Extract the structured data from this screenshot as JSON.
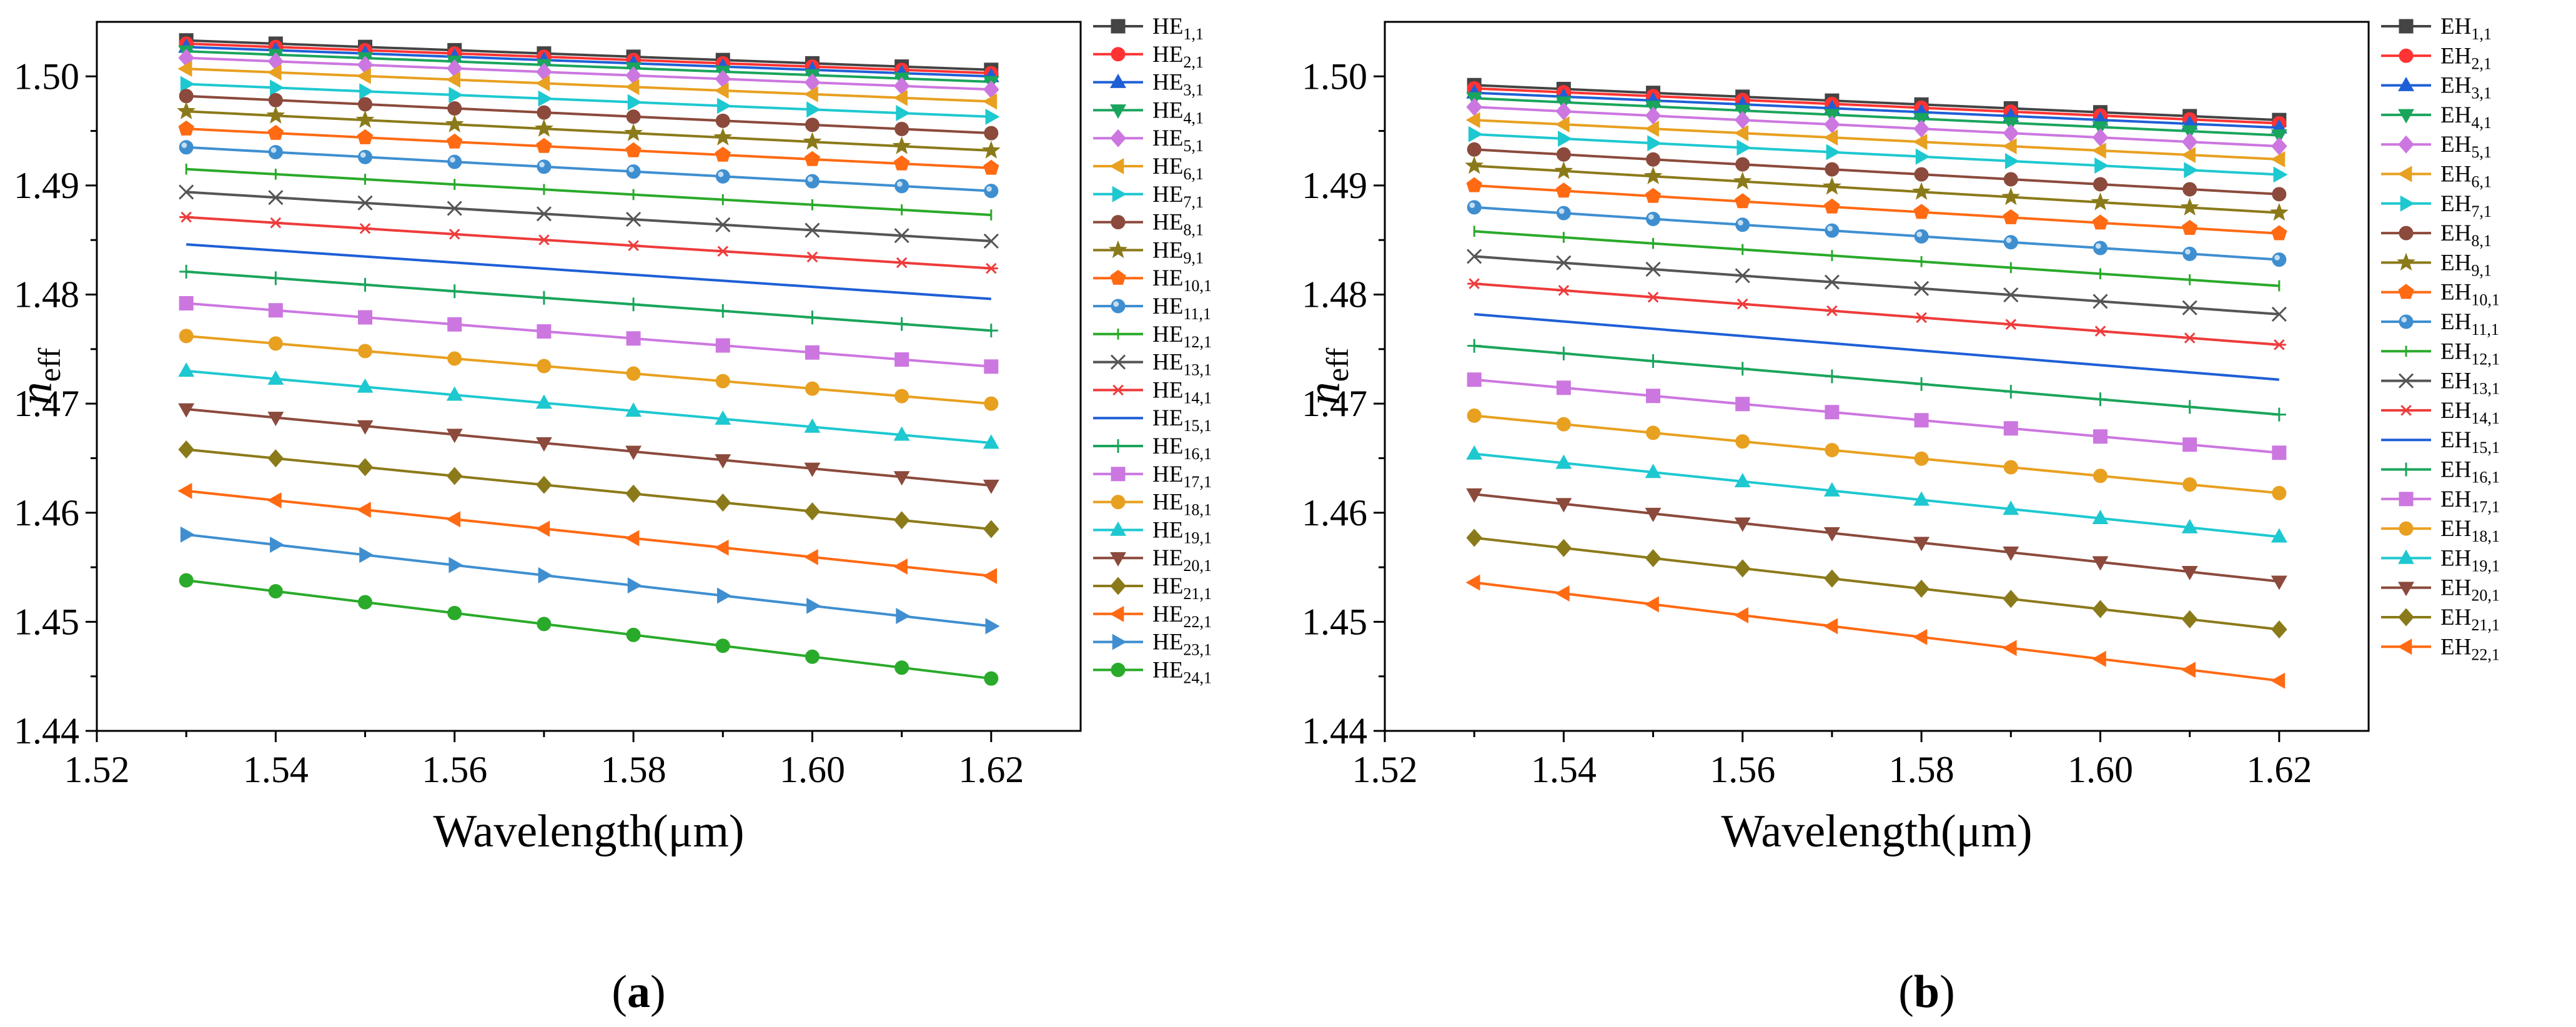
{
  "chart_data": [
    {
      "type": "line",
      "panel": "(a)",
      "panel_letter": "a",
      "xlabel": "Wavelength(μm)",
      "ylabel_main": "n",
      "ylabel_sub": "eff",
      "xlim": [
        1.52,
        1.63
      ],
      "ylim": [
        1.44,
        1.505
      ],
      "xticks": [
        "1.52",
        "1.54",
        "1.56",
        "1.58",
        "1.60",
        "1.62"
      ],
      "yticks": [
        "1.44",
        "1.45",
        "1.46",
        "1.47",
        "1.48",
        "1.49",
        "1.50"
      ],
      "legend_position": "right",
      "x": [
        1.53,
        1.54,
        1.55,
        1.56,
        1.57,
        1.58,
        1.59,
        1.6,
        1.61,
        1.62
      ],
      "series": [
        {
          "name": "HE1,1",
          "prefix": "HE",
          "sub": "1,1",
          "color": "#444444",
          "marker": "square",
          "start": 1.5033,
          "end": 1.5006
        },
        {
          "name": "HE2,1",
          "prefix": "HE",
          "sub": "2,1",
          "color": "#ff3333",
          "marker": "circle",
          "start": 1.503,
          "end": 1.5003
        },
        {
          "name": "HE3,1",
          "prefix": "HE",
          "sub": "3,1",
          "color": "#1f5fd6",
          "marker": "triangle",
          "start": 1.5027,
          "end": 1.5
        },
        {
          "name": "HE4,1",
          "prefix": "HE",
          "sub": "4,1",
          "color": "#1aa55c",
          "marker": "tri-down",
          "start": 1.5023,
          "end": 1.4995
        },
        {
          "name": "HE5,1",
          "prefix": "HE",
          "sub": "5,1",
          "color": "#cc77e0",
          "marker": "diamond",
          "start": 1.5017,
          "end": 1.4988
        },
        {
          "name": "HE6,1",
          "prefix": "HE",
          "sub": "6,1",
          "color": "#e8a020",
          "marker": "tri-left",
          "start": 1.5007,
          "end": 1.4977
        },
        {
          "name": "HE7,1",
          "prefix": "HE",
          "sub": "7,1",
          "color": "#1ec8d0",
          "marker": "tri-right",
          "start": 1.4993,
          "end": 1.4963
        },
        {
          "name": "HE8,1",
          "prefix": "HE",
          "sub": "8,1",
          "color": "#8b4a3c",
          "marker": "hexagon",
          "start": 1.4982,
          "end": 1.4948
        },
        {
          "name": "HE9,1",
          "prefix": "HE",
          "sub": "9,1",
          "color": "#8b7a1a",
          "marker": "star",
          "start": 1.4968,
          "end": 1.4932
        },
        {
          "name": "HE10,1",
          "prefix": "HE",
          "sub": "10,1",
          "color": "#ff6a13",
          "marker": "pentagon",
          "start": 1.4952,
          "end": 1.4916
        },
        {
          "name": "HE11,1",
          "prefix": "HE",
          "sub": "11,1",
          "color": "#3f8fd0",
          "marker": "sphere",
          "start": 1.4935,
          "end": 1.4895
        },
        {
          "name": "HE12,1",
          "prefix": "HE",
          "sub": "12,1",
          "color": "#2aaa2a",
          "marker": "dash",
          "start": 1.4915,
          "end": 1.4873
        },
        {
          "name": "HE13,1",
          "prefix": "HE",
          "sub": "13,1",
          "color": "#555555",
          "marker": "x",
          "start": 1.4894,
          "end": 1.4849
        },
        {
          "name": "HE14,1",
          "prefix": "HE",
          "sub": "14,1",
          "color": "#ee3b3b",
          "marker": "asterisk",
          "start": 1.4871,
          "end": 1.4824
        },
        {
          "name": "HE15,1",
          "prefix": "HE",
          "sub": "15,1",
          "color": "#1f5fd6",
          "marker": "none",
          "start": 1.4846,
          "end": 1.4796
        },
        {
          "name": "HE16,1",
          "prefix": "HE",
          "sub": "16,1",
          "color": "#1aa55c",
          "marker": "plus",
          "start": 1.4821,
          "end": 1.4767
        },
        {
          "name": "HE17,1",
          "prefix": "HE",
          "sub": "17,1",
          "color": "#cc77e0",
          "marker": "square",
          "start": 1.4792,
          "end": 1.4734
        },
        {
          "name": "HE18,1",
          "prefix": "HE",
          "sub": "18,1",
          "color": "#e8a020",
          "marker": "circle",
          "start": 1.4762,
          "end": 1.47
        },
        {
          "name": "HE19,1",
          "prefix": "HE",
          "sub": "19,1",
          "color": "#1ec8d0",
          "marker": "triangle",
          "start": 1.473,
          "end": 1.4664
        },
        {
          "name": "HE20,1",
          "prefix": "HE",
          "sub": "20,1",
          "color": "#8b4a3c",
          "marker": "tri-down",
          "start": 1.4695,
          "end": 1.4625
        },
        {
          "name": "HE21,1",
          "prefix": "HE",
          "sub": "21,1",
          "color": "#8b7a1a",
          "marker": "diamond",
          "start": 1.4658,
          "end": 1.4585
        },
        {
          "name": "HE22,1",
          "prefix": "HE",
          "sub": "22,1",
          "color": "#ff6a13",
          "marker": "tri-left",
          "start": 1.462,
          "end": 1.4542
        },
        {
          "name": "HE23,1",
          "prefix": "HE",
          "sub": "23,1",
          "color": "#3f8fd0",
          "marker": "tri-right",
          "start": 1.458,
          "end": 1.4496
        },
        {
          "name": "HE24,1",
          "prefix": "HE",
          "sub": "24,1",
          "color": "#2aaa2a",
          "marker": "hexagon",
          "start": 1.4538,
          "end": 1.4448
        }
      ]
    },
    {
      "type": "line",
      "panel": "(b)",
      "panel_letter": "b",
      "xlabel": "Wavelength(μm)",
      "ylabel_main": "n",
      "ylabel_sub": "eff",
      "xlim": [
        1.52,
        1.63
      ],
      "ylim": [
        1.44,
        1.505
      ],
      "xticks": [
        "1.52",
        "1.54",
        "1.56",
        "1.58",
        "1.60",
        "1.62"
      ],
      "yticks": [
        "1.44",
        "1.45",
        "1.46",
        "1.47",
        "1.48",
        "1.49",
        "1.50"
      ],
      "legend_position": "right",
      "x": [
        1.53,
        1.54,
        1.55,
        1.56,
        1.57,
        1.58,
        1.59,
        1.6,
        1.61,
        1.62
      ],
      "series": [
        {
          "name": "EH1,1",
          "prefix": "EH",
          "sub": "1,1",
          "color": "#444444",
          "marker": "square",
          "start": 1.4992,
          "end": 1.496
        },
        {
          "name": "EH2,1",
          "prefix": "EH",
          "sub": "2,1",
          "color": "#ff3333",
          "marker": "circle",
          "start": 1.4989,
          "end": 1.4957
        },
        {
          "name": "EH3,1",
          "prefix": "EH",
          "sub": "3,1",
          "color": "#1f5fd6",
          "marker": "triangle",
          "start": 1.4985,
          "end": 1.4953
        },
        {
          "name": "EH4,1",
          "prefix": "EH",
          "sub": "4,1",
          "color": "#1aa55c",
          "marker": "tri-down",
          "start": 1.498,
          "end": 1.4946
        },
        {
          "name": "EH5,1",
          "prefix": "EH",
          "sub": "5,1",
          "color": "#cc77e0",
          "marker": "diamond",
          "start": 1.4972,
          "end": 1.4936
        },
        {
          "name": "EH6,1",
          "prefix": "EH",
          "sub": "6,1",
          "color": "#e8a020",
          "marker": "tri-left",
          "start": 1.496,
          "end": 1.4924
        },
        {
          "name": "EH7,1",
          "prefix": "EH",
          "sub": "7,1",
          "color": "#1ec8d0",
          "marker": "tri-right",
          "start": 1.4947,
          "end": 1.491
        },
        {
          "name": "EH8,1",
          "prefix": "EH",
          "sub": "8,1",
          "color": "#8b4a3c",
          "marker": "hexagon",
          "start": 1.4933,
          "end": 1.4892
        },
        {
          "name": "EH9,1",
          "prefix": "EH",
          "sub": "9,1",
          "color": "#8b7a1a",
          "marker": "star",
          "start": 1.4918,
          "end": 1.4875
        },
        {
          "name": "EH10,1",
          "prefix": "EH",
          "sub": "10,1",
          "color": "#ff6a13",
          "marker": "pentagon",
          "start": 1.49,
          "end": 1.4856
        },
        {
          "name": "EH11,1",
          "prefix": "EH",
          "sub": "11,1",
          "color": "#3f8fd0",
          "marker": "sphere",
          "start": 1.488,
          "end": 1.4832
        },
        {
          "name": "EH12,1",
          "prefix": "EH",
          "sub": "12,1",
          "color": "#2aaa2a",
          "marker": "dash",
          "start": 1.4858,
          "end": 1.4808
        },
        {
          "name": "EH13,1",
          "prefix": "EH",
          "sub": "13,1",
          "color": "#555555",
          "marker": "x",
          "start": 1.4835,
          "end": 1.4782
        },
        {
          "name": "EH14,1",
          "prefix": "EH",
          "sub": "14,1",
          "color": "#ee3b3b",
          "marker": "asterisk",
          "start": 1.481,
          "end": 1.4754
        },
        {
          "name": "EH15,1",
          "prefix": "EH",
          "sub": "15,1",
          "color": "#1f5fd6",
          "marker": "none",
          "start": 1.4782,
          "end": 1.4722
        },
        {
          "name": "EH16,1",
          "prefix": "EH",
          "sub": "16,1",
          "color": "#1aa55c",
          "marker": "plus",
          "start": 1.4753,
          "end": 1.469
        },
        {
          "name": "EH17,1",
          "prefix": "EH",
          "sub": "17,1",
          "color": "#cc77e0",
          "marker": "square",
          "start": 1.4722,
          "end": 1.4655
        },
        {
          "name": "EH18,1",
          "prefix": "EH",
          "sub": "18,1",
          "color": "#e8a020",
          "marker": "circle",
          "start": 1.4689,
          "end": 1.4618
        },
        {
          "name": "EH19,1",
          "prefix": "EH",
          "sub": "19,1",
          "color": "#1ec8d0",
          "marker": "triangle",
          "start": 1.4654,
          "end": 1.4578
        },
        {
          "name": "EH20,1",
          "prefix": "EH",
          "sub": "20,1",
          "color": "#8b4a3c",
          "marker": "tri-down",
          "start": 1.4617,
          "end": 1.4537
        },
        {
          "name": "EH21,1",
          "prefix": "EH",
          "sub": "21,1",
          "color": "#8b7a1a",
          "marker": "diamond",
          "start": 1.4577,
          "end": 1.4493
        },
        {
          "name": "EH22,1",
          "prefix": "EH",
          "sub": "22,1",
          "color": "#ff6a13",
          "marker": "tri-left",
          "start": 1.4536,
          "end": 1.4446
        }
      ]
    }
  ]
}
